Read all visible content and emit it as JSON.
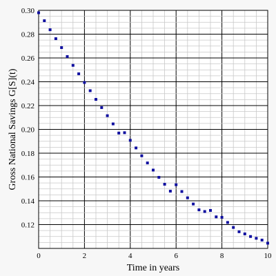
{
  "chart_data": {
    "type": "scatter",
    "title": "",
    "xlabel": "Time in years",
    "ylabel": "Gross National Savings G[S](t)",
    "xlim": [
      0,
      10
    ],
    "ylim": [
      0.1,
      0.3
    ],
    "grid": true,
    "x_ticks": [
      0,
      2,
      4,
      6,
      8,
      10
    ],
    "y_ticks": [
      0.12,
      0.14,
      0.16,
      0.18,
      0.2,
      0.22,
      0.24,
      0.26,
      0.28,
      0.3
    ],
    "x_tick_labels": [
      "0",
      "2",
      "4",
      "6",
      "8",
      "10"
    ],
    "y_tick_labels": [
      "0.12",
      "0.14",
      "0.16",
      "0.18",
      "0.20",
      "0.22",
      "0.24",
      "0.26",
      "0.28",
      "0.30"
    ],
    "series": [
      {
        "color": "#1010a0",
        "points": [
          [
            0.0,
            0.298
          ],
          [
            0.25,
            0.2913
          ],
          [
            0.5,
            0.2837
          ],
          [
            0.75,
            0.2762
          ],
          [
            1.0,
            0.2687
          ],
          [
            1.25,
            0.2612
          ],
          [
            1.5,
            0.2538
          ],
          [
            1.75,
            0.2467
          ],
          [
            2.0,
            0.2394
          ],
          [
            2.25,
            0.2325
          ],
          [
            2.5,
            0.2252
          ],
          [
            2.75,
            0.2183
          ],
          [
            3.0,
            0.2115
          ],
          [
            3.25,
            0.2046
          ],
          [
            3.5,
            0.1969
          ],
          [
            3.75,
            0.1972
          ],
          [
            4.0,
            0.1908
          ],
          [
            4.25,
            0.1844
          ],
          [
            4.5,
            0.1778
          ],
          [
            4.75,
            0.1718
          ],
          [
            5.0,
            0.1658
          ],
          [
            5.25,
            0.1597
          ],
          [
            5.5,
            0.1539
          ],
          [
            5.75,
            0.1481
          ],
          [
            6.0,
            0.1535
          ],
          [
            6.25,
            0.1478
          ],
          [
            6.5,
            0.1425
          ],
          [
            6.75,
            0.1373
          ],
          [
            7.0,
            0.1324
          ],
          [
            7.25,
            0.131
          ],
          [
            7.5,
            0.1319
          ],
          [
            7.75,
            0.1265
          ],
          [
            8.0,
            0.1261
          ],
          [
            8.25,
            0.1218
          ],
          [
            8.5,
            0.1176
          ],
          [
            8.75,
            0.114
          ],
          [
            9.0,
            0.1122
          ],
          [
            9.25,
            0.11
          ],
          [
            9.5,
            0.1085
          ],
          [
            9.75,
            0.107
          ],
          [
            10.0,
            0.1044
          ]
        ]
      }
    ]
  }
}
